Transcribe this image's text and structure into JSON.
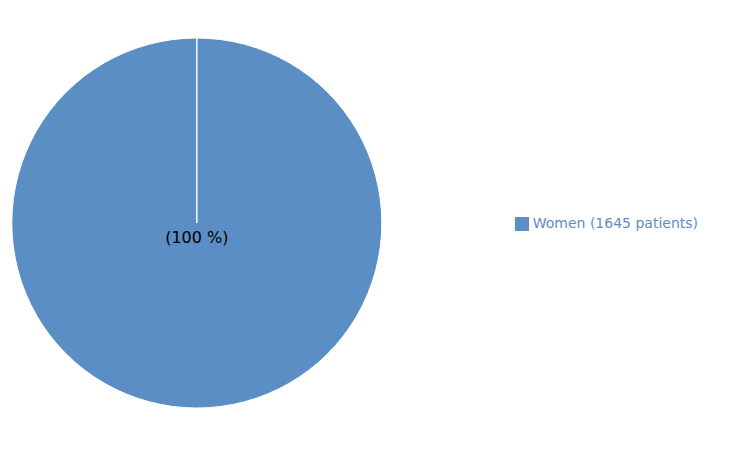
{
  "chart_data": {
    "type": "pie",
    "categories": [
      "Women (1645 patients)"
    ],
    "values": [
      100
    ],
    "value_labels": [
      "(100 %)"
    ],
    "colors": [
      "#5b8ec4"
    ],
    "legend": "right"
  }
}
